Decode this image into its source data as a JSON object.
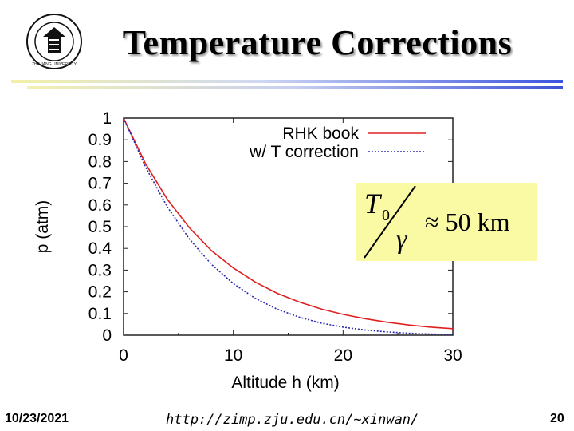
{
  "slide": {
    "title": "Temperature Corrections",
    "logo_text": "ZHEJIANG UNIVERSITY",
    "footer_date": "10/23/2021",
    "footer_url": "http://zimp.zju.edu.cn/~xinwan/",
    "page_number": "20"
  },
  "formula": {
    "numerator": "T",
    "subscript": "0",
    "denominator": "γ",
    "approx": "≈ 50 km"
  },
  "chart_data": {
    "type": "line",
    "title": "",
    "xlabel": "Altitude h (km)",
    "ylabel": "p (atm)",
    "xlim": [
      0,
      30
    ],
    "ylim": [
      0,
      1
    ],
    "xticks": [
      "0",
      "10",
      "20",
      "30"
    ],
    "yticks": [
      "0",
      "0.1",
      "0.2",
      "0.3",
      "0.4",
      "0.5",
      "0.6",
      "0.7",
      "0.8",
      "0.9",
      "1"
    ],
    "legend_position": "top-right",
    "series": [
      {
        "name": "RHK book",
        "color": "#e02020",
        "style": "solid",
        "x": [
          0,
          2,
          4,
          6,
          8,
          10,
          12,
          14,
          16,
          18,
          20,
          22,
          24,
          26,
          28,
          30
        ],
        "values": [
          1.0,
          0.79,
          0.625,
          0.495,
          0.39,
          0.31,
          0.245,
          0.193,
          0.153,
          0.121,
          0.096,
          0.076,
          0.06,
          0.047,
          0.037,
          0.03
        ]
      },
      {
        "name": "w/ T correction",
        "color": "#2a2ab0",
        "style": "dotted",
        "x": [
          0,
          2,
          4,
          6,
          8,
          10,
          12,
          14,
          16,
          18,
          20,
          22,
          24,
          26,
          28,
          30
        ],
        "values": [
          1.0,
          0.775,
          0.59,
          0.443,
          0.327,
          0.238,
          0.17,
          0.12,
          0.083,
          0.056,
          0.037,
          0.024,
          0.015,
          0.009,
          0.005,
          0.003
        ]
      }
    ]
  }
}
